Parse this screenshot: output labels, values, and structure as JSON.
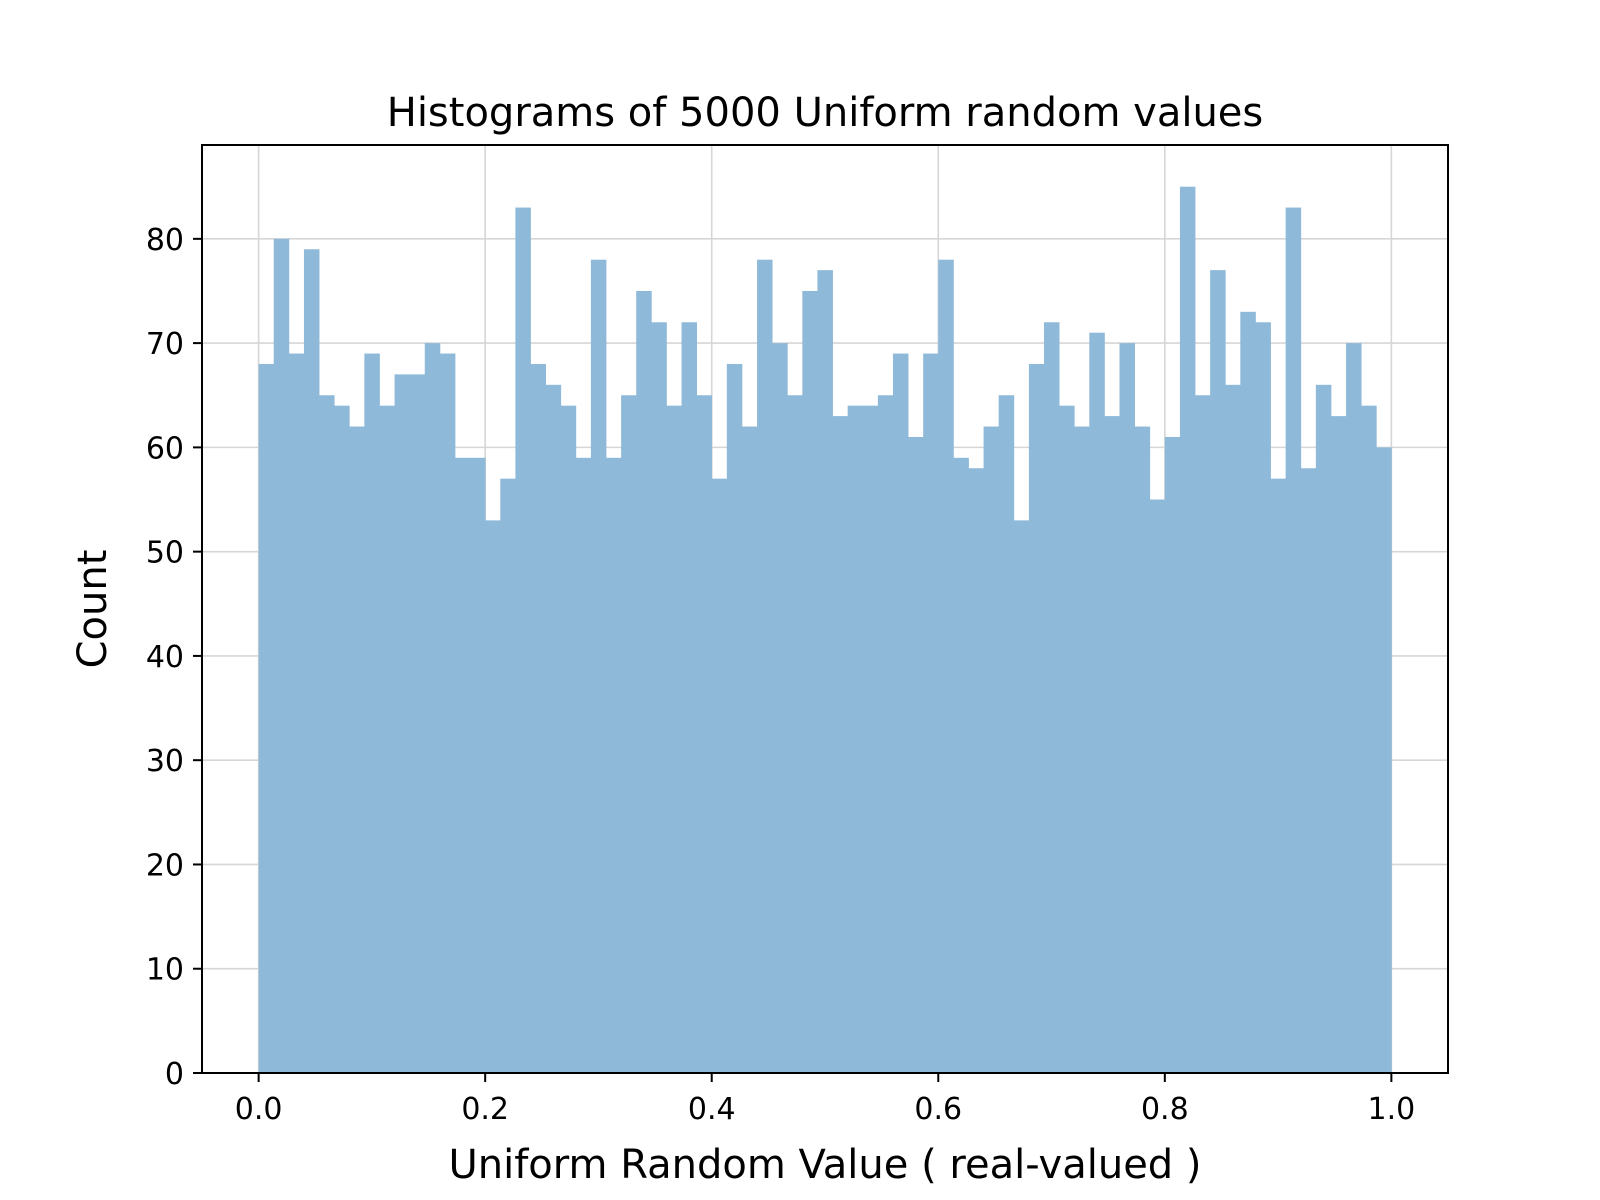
{
  "chart_data": {
    "type": "bar",
    "title": "Histograms of 5000 Uniform random values",
    "xlabel": "Uniform Random Value ( real-valued )",
    "ylabel": "Count",
    "xlim": [
      -0.05,
      1.05
    ],
    "ylim": [
      0,
      89
    ],
    "bin_width": 0.01333,
    "x_ticks": [
      0.0,
      0.2,
      0.4,
      0.6,
      0.8,
      1.0
    ],
    "x_tick_labels": [
      "0.0",
      "0.2",
      "0.4",
      "0.6",
      "0.8",
      "1.0"
    ],
    "y_ticks": [
      0,
      10,
      20,
      30,
      40,
      50,
      60,
      70,
      80
    ],
    "y_tick_labels": [
      "0",
      "10",
      "20",
      "30",
      "40",
      "50",
      "60",
      "70",
      "80"
    ],
    "grid": true,
    "bar_color": "#8fb9d9",
    "values": [
      68,
      80,
      69,
      79,
      65,
      64,
      62,
      69,
      64,
      67,
      67,
      70,
      69,
      59,
      59,
      53,
      57,
      83,
      68,
      66,
      64,
      59,
      78,
      59,
      65,
      75,
      72,
      64,
      72,
      65,
      57,
      68,
      62,
      78,
      70,
      65,
      75,
      77,
      63,
      64,
      64,
      65,
      69,
      61,
      69,
      78,
      59,
      58,
      62,
      65,
      53,
      68,
      72,
      64,
      62,
      71,
      63,
      70,
      62,
      55,
      61,
      85,
      65,
      77,
      66,
      73,
      72,
      57,
      83,
      58,
      66,
      63,
      70,
      64,
      60
    ]
  }
}
